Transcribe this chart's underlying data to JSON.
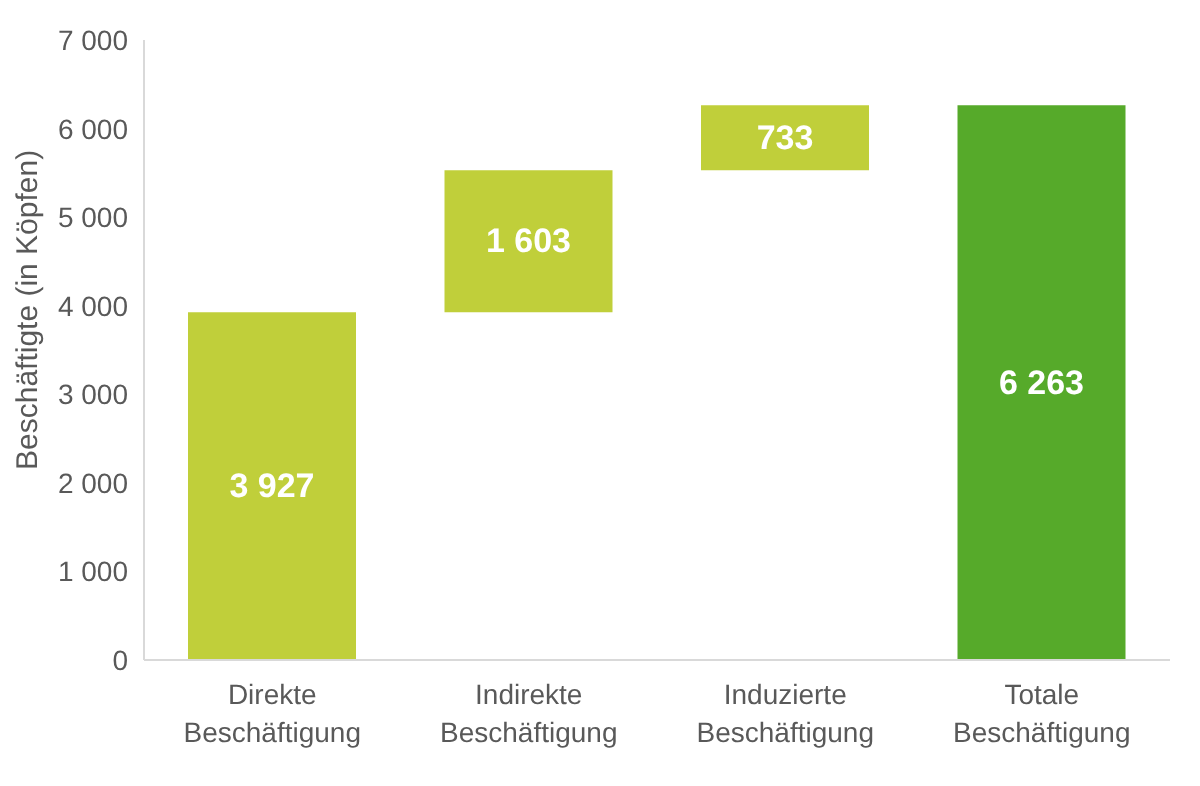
{
  "chart_data": {
    "type": "bar",
    "ylabel": "Beschäftigte (in Köpfen)",
    "categories": [
      "Direkte Beschäftigung",
      "Indirekte Beschäftigung",
      "Induzierte Beschäftigung",
      "Totale Beschäftigung"
    ],
    "values": [
      3927,
      1603,
      733,
      6263
    ],
    "base": [
      0,
      3927,
      5530,
      0
    ],
    "colors": [
      "#c0cf3a",
      "#c0cf3a",
      "#c0cf3a",
      "#56aa2a"
    ],
    "value_labels": [
      "3 927",
      "1 603",
      "733",
      "6 263"
    ],
    "ylim": [
      0,
      7000
    ],
    "yticks": [
      {
        "value": 0,
        "label": "0"
      },
      {
        "value": 1000,
        "label": "1 000"
      },
      {
        "value": 2000,
        "label": "2 000"
      },
      {
        "value": 3000,
        "label": "3 000"
      },
      {
        "value": 4000,
        "label": "4 000"
      },
      {
        "value": 5000,
        "label": "5 000"
      },
      {
        "value": 6000,
        "label": "6 000"
      },
      {
        "value": 7000,
        "label": "7 000"
      }
    ],
    "grid": false,
    "legend": false
  }
}
